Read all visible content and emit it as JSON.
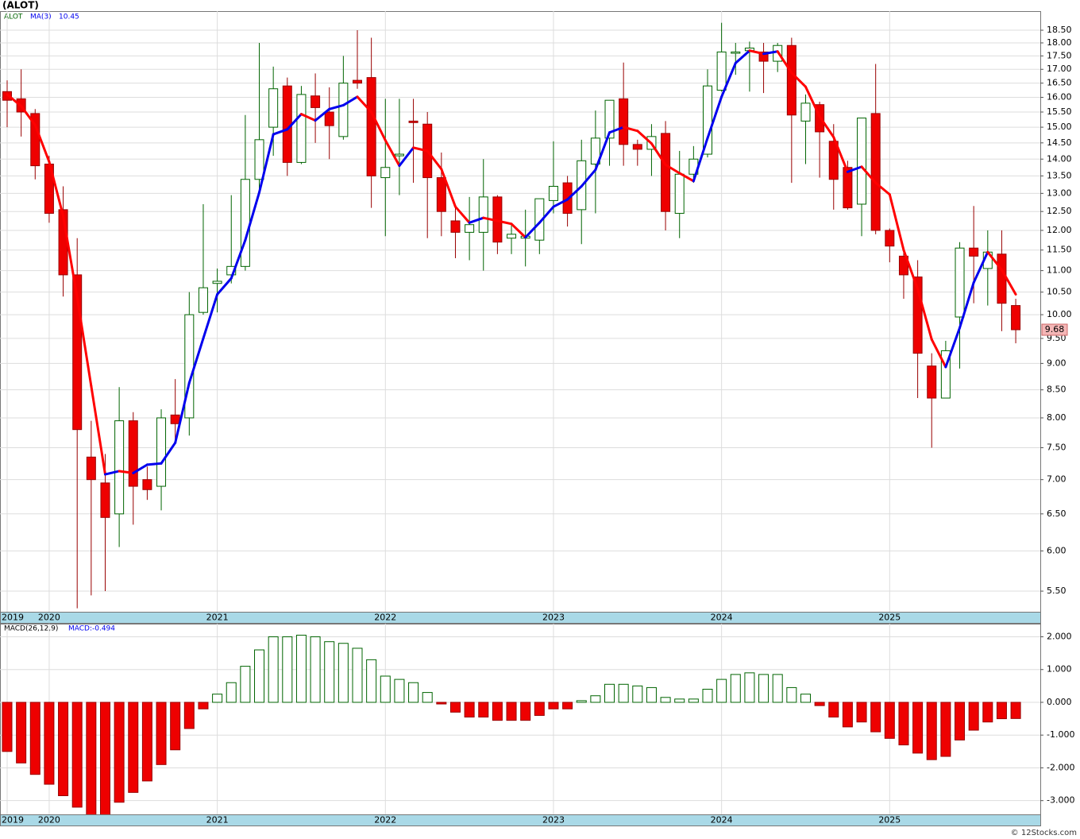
{
  "chart_data": [
    {
      "type": "candlestick",
      "title": "(ALOT)",
      "name": "ALOT",
      "categories": [
        "2019",
        null,
        null,
        "2020",
        null,
        null,
        null,
        null,
        null,
        null,
        null,
        null,
        null,
        null,
        null,
        "2021",
        null,
        null,
        null,
        null,
        null,
        null,
        null,
        null,
        null,
        null,
        null,
        "2022",
        null,
        null,
        null,
        null,
        null,
        null,
        null,
        null,
        null,
        null,
        null,
        "2023",
        null,
        null,
        null,
        null,
        null,
        null,
        null,
        null,
        null,
        null,
        null,
        "2024",
        null,
        null,
        null,
        null,
        null,
        null,
        null,
        null,
        null,
        null,
        null,
        "2025",
        null,
        null,
        null,
        null,
        null,
        null,
        null,
        null,
        null
      ],
      "open": [
        16.2,
        15.95,
        15.45,
        13.85,
        12.55,
        10.9,
        7.35,
        6.95,
        6.5,
        7.95,
        7.0,
        6.9,
        8.05,
        8.0,
        10.05,
        10.7,
        10.9,
        11.1,
        13.4,
        15.0,
        16.4,
        13.9,
        16.05,
        15.5,
        14.7,
        16.6,
        16.7,
        13.45,
        14.1,
        15.2,
        15.1,
        13.45,
        12.25,
        11.95,
        11.95,
        12.9,
        11.8,
        11.8,
        11.75,
        12.8,
        13.3,
        12.55,
        13.85,
        14.65,
        15.95,
        14.45,
        14.3,
        14.8,
        12.45,
        13.55,
        14.15,
        16.25,
        17.6,
        17.7,
        17.65,
        17.3,
        17.9,
        15.2,
        15.75,
        14.55,
        13.75,
        12.7,
        15.45,
        12.0,
        11.35,
        10.85,
        8.95,
        8.35,
        9.95,
        11.55,
        11.05,
        11.4,
        10.2
      ],
      "high": [
        16.6,
        17.0,
        15.6,
        14.1,
        13.2,
        11.8,
        7.95,
        7.4,
        8.55,
        8.1,
        7.2,
        8.15,
        8.7,
        10.5,
        12.7,
        11.05,
        12.95,
        15.4,
        18.0,
        17.1,
        16.7,
        16.4,
        16.85,
        16.35,
        17.5,
        18.5,
        18.2,
        15.95,
        15.95,
        15.95,
        15.5,
        14.2,
        12.65,
        12.9,
        14.0,
        12.95,
        12.15,
        12.55,
        12.85,
        14.55,
        13.5,
        14.6,
        15.55,
        15.9,
        17.25,
        14.6,
        15.1,
        15.2,
        14.25,
        14.4,
        17.0,
        18.8,
        18.0,
        18.05,
        18.0,
        18.0,
        18.2,
        16.1,
        15.85,
        15.1,
        13.95,
        15.3,
        17.2,
        12.05,
        11.45,
        11.25,
        9.2,
        9.45,
        11.7,
        12.65,
        12.0,
        12.0,
        10.35
      ],
      "low": [
        15.0,
        14.7,
        13.4,
        12.2,
        10.4,
        5.3,
        5.45,
        5.5,
        6.05,
        6.35,
        6.7,
        6.55,
        7.6,
        7.7,
        10.0,
        10.05,
        10.7,
        11.0,
        13.1,
        14.1,
        13.5,
        13.85,
        14.5,
        14.0,
        14.6,
        16.3,
        12.6,
        11.85,
        12.95,
        13.3,
        11.8,
        11.85,
        11.3,
        11.25,
        11.0,
        11.4,
        11.4,
        11.1,
        11.4,
        12.45,
        12.1,
        11.65,
        12.45,
        13.8,
        13.8,
        13.8,
        13.5,
        12.0,
        11.8,
        13.3,
        14.05,
        16.2,
        16.8,
        16.2,
        16.15,
        16.9,
        13.3,
        13.85,
        13.45,
        12.55,
        12.55,
        11.85,
        11.9,
        11.2,
        10.35,
        8.35,
        7.5,
        8.35,
        8.9,
        10.25,
        10.2,
        9.65,
        9.4
      ],
      "close": [
        15.9,
        15.5,
        13.8,
        12.45,
        10.9,
        7.8,
        7.0,
        6.45,
        7.95,
        6.9,
        6.85,
        8.0,
        7.9,
        10.0,
        10.6,
        10.75,
        11.1,
        13.4,
        14.6,
        16.3,
        13.9,
        16.1,
        15.65,
        15.05,
        16.5,
        16.5,
        13.5,
        13.75,
        14.15,
        15.15,
        13.45,
        12.5,
        11.95,
        12.15,
        12.9,
        11.7,
        11.9,
        11.85,
        12.85,
        13.2,
        12.45,
        13.95,
        14.65,
        15.9,
        14.45,
        14.3,
        14.7,
        12.5,
        13.55,
        14.0,
        16.4,
        17.65,
        17.65,
        17.8,
        17.3,
        17.9,
        15.4,
        15.8,
        14.85,
        13.4,
        12.6,
        15.3,
        12.0,
        11.6,
        10.9,
        9.2,
        8.35,
        9.25,
        11.55,
        11.35,
        11.45,
        10.25,
        9.68
      ],
      "up_color": "#006400",
      "down_color": "#ee0000",
      "ma": {
        "name": "MA(3)",
        "up_color": "#0000ee",
        "down_color": "#ff0000",
        "values": [
          16.1,
          15.7,
          15.07,
          13.92,
          12.38,
          10.38,
          8.57,
          7.08,
          7.13,
          7.1,
          7.23,
          7.25,
          7.58,
          8.63,
          9.5,
          10.45,
          10.82,
          11.75,
          13.03,
          14.77,
          14.93,
          15.43,
          15.22,
          15.6,
          15.73,
          16.02,
          15.5,
          14.58,
          13.8,
          14.35,
          14.25,
          13.7,
          12.63,
          12.2,
          12.33,
          12.25,
          12.17,
          11.82,
          12.2,
          12.63,
          12.83,
          13.2,
          13.68,
          14.83,
          15.0,
          14.88,
          14.48,
          13.83,
          13.58,
          13.35,
          14.65,
          16.02,
          17.23,
          17.7,
          17.58,
          17.67,
          16.87,
          16.37,
          15.35,
          14.68,
          13.62,
          13.77,
          13.3,
          12.97,
          11.5,
          10.57,
          9.48,
          8.93,
          9.72,
          10.72,
          11.45,
          11.02,
          10.45
        ]
      },
      "log_scale": true,
      "grid": true,
      "ylim": [
        5.26,
        19.28
      ],
      "yticks": [
        {
          "value": 5.5,
          "label": "5.50"
        },
        {
          "value": 6,
          "label": "6.00"
        },
        {
          "value": 6.5,
          "label": "6.50"
        },
        {
          "value": 7,
          "label": "7.00"
        },
        {
          "value": 7.5,
          "label": "7.50"
        },
        {
          "value": 8,
          "label": "8.00"
        },
        {
          "value": 8.5,
          "label": "8.50"
        },
        {
          "value": 9,
          "label": "9.00"
        },
        {
          "value": 9.5,
          "label": "9.50"
        },
        {
          "value": 10,
          "label": "10.00"
        },
        {
          "value": 10.5,
          "label": "10.50"
        },
        {
          "value": 11,
          "label": "11.00"
        },
        {
          "value": 11.5,
          "label": "11.50"
        },
        {
          "value": 12,
          "label": "12.00"
        },
        {
          "value": 12.5,
          "label": "12.50"
        },
        {
          "value": 13,
          "label": "13.00"
        },
        {
          "value": 13.5,
          "label": "13.50"
        },
        {
          "value": 14,
          "label": "14.00"
        },
        {
          "value": 14.5,
          "label": "14.50"
        },
        {
          "value": 15,
          "label": "15.00"
        },
        {
          "value": 15.5,
          "label": "15.50"
        },
        {
          "value": 16,
          "label": "16.00"
        },
        {
          "value": 16.5,
          "label": "16.50"
        },
        {
          "value": 17,
          "label": "17.00"
        },
        {
          "value": 17.5,
          "label": "17.50"
        },
        {
          "value": 18,
          "label": "18.00"
        },
        {
          "value": 18.5,
          "label": "18.50"
        }
      ]
    },
    {
      "type": "histogram",
      "name": "MACD(26,12,9)",
      "value_name": "MACD:",
      "values": [
        -1.5,
        -1.85,
        -2.2,
        -2.5,
        -2.85,
        -3.2,
        -3.45,
        -3.45,
        -3.05,
        -2.75,
        -2.4,
        -1.9,
        -1.45,
        -0.8,
        -0.2,
        0.25,
        0.6,
        1.1,
        1.6,
        2.0,
        2.0,
        2.05,
        2.0,
        1.85,
        1.8,
        1.65,
        1.3,
        0.8,
        0.7,
        0.6,
        0.3,
        -0.05,
        -0.3,
        -0.45,
        -0.45,
        -0.55,
        -0.55,
        -0.55,
        -0.4,
        -0.2,
        -0.2,
        0.05,
        0.2,
        0.55,
        0.55,
        0.5,
        0.45,
        0.15,
        0.1,
        0.1,
        0.4,
        0.7,
        0.85,
        0.9,
        0.85,
        0.85,
        0.45,
        0.25,
        -0.1,
        -0.45,
        -0.75,
        -0.6,
        -0.9,
        -1.1,
        -1.3,
        -1.55,
        -1.75,
        -1.65,
        -1.15,
        -0.85,
        -0.6,
        -0.5,
        -0.494
      ],
      "up_color": "#006400",
      "down_color": "#ee0000",
      "grid": true,
      "ylim": [
        -3.42,
        2.4
      ],
      "yticks": [
        {
          "value": 2,
          "label": "2.000"
        },
        {
          "value": 1,
          "label": "1.000"
        },
        {
          "value": 0,
          "label": "0.000"
        },
        {
          "value": -1,
          "label": "-1.000"
        },
        {
          "value": -2,
          "label": "-2.000"
        },
        {
          "value": -3,
          "label": "-3.000"
        }
      ]
    }
  ],
  "footer": "© 12Stocks.com"
}
